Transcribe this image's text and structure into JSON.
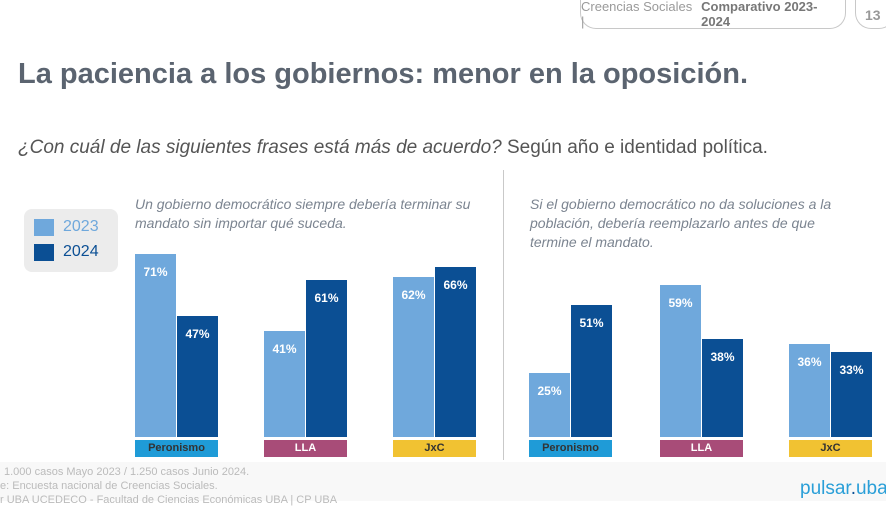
{
  "header": {
    "section": "Creencias Sociales |",
    "section_bold": "Comparativo 2023-2024",
    "page": "13"
  },
  "title": "La paciencia a los gobiernos: menor en la oposición.",
  "subtitle_italic": "¿Con cuál de las siguientes frases está más de acuerdo?",
  "subtitle_rest": " Según año e identidad política.",
  "footer": {
    "lines": [
      "1.000 casos Mayo 2023 / 1.250 casos  Junio 2024.",
      "e: Encuesta nacional de Creencias Sociales.",
      "r UBA UCEDECO - Facultad de Ciencias Económicas UBA | CP UBA"
    ],
    "logo": "pulsar.uba"
  },
  "colors": {
    "2023": "#6fa8dc",
    "2024": "#0b4f94",
    "Peronismo": "#1f9bd7",
    "LLA": "#a84c78",
    "JxC": "#f1c232"
  },
  "chart_data": [
    {
      "type": "bar",
      "title": "Un gobierno democrático siempre debería terminar su mandato sin importar qué suceda.",
      "categories": [
        "Peronismo",
        "LLA",
        "JxC"
      ],
      "series": [
        {
          "name": "2023",
          "values": [
            71,
            41,
            62
          ]
        },
        {
          "name": "2024",
          "values": [
            47,
            61,
            66
          ]
        }
      ],
      "ylim": [
        0,
        100
      ],
      "grid": false,
      "legend": "left"
    },
    {
      "type": "bar",
      "title": "Si el gobierno democrático no da soluciones a la población, debería reemplazarlo antes de que termine el mandato.",
      "categories": [
        "Peronismo",
        "LLA",
        "JxC"
      ],
      "series": [
        {
          "name": "2023",
          "values": [
            25,
            59,
            36
          ]
        },
        {
          "name": "2024",
          "values": [
            51,
            38,
            33
          ]
        }
      ],
      "ylim": [
        0,
        100
      ],
      "grid": false
    }
  ]
}
